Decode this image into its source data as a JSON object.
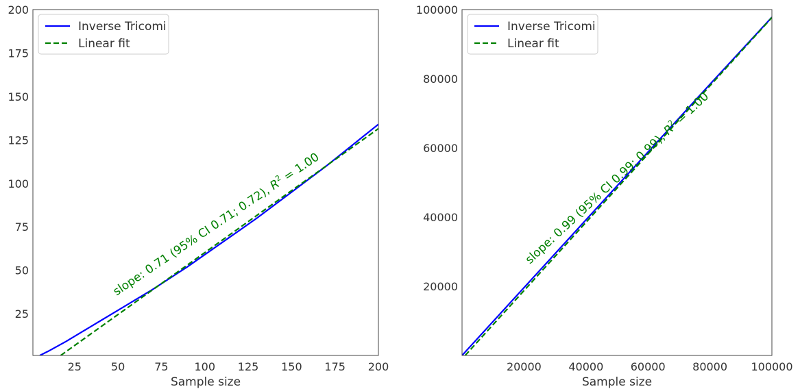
{
  "chart_data": [
    {
      "type": "line",
      "xlabel": "Sample size",
      "ylabel": "",
      "xlim": [
        1,
        200
      ],
      "ylim": [
        1,
        200
      ],
      "xticks": [
        25,
        50,
        75,
        100,
        125,
        150,
        175,
        200
      ],
      "yticks": [
        25,
        50,
        75,
        100,
        125,
        150,
        175,
        200
      ],
      "grid": false,
      "legend_position": "top-left",
      "series": [
        {
          "name": "Inverse Tricomi",
          "style": "solid",
          "color": "#0000ff",
          "x": [
            5,
            10,
            20,
            30,
            40,
            50,
            60,
            70,
            80,
            90,
            100,
            110,
            120,
            130,
            140,
            150,
            160,
            170,
            180,
            190,
            200
          ],
          "y": [
            1,
            3.5,
            9,
            15,
            21,
            27,
            33,
            39,
            45.5,
            52,
            59,
            66,
            73,
            80,
            87.5,
            95,
            102.5,
            110,
            118,
            126,
            134
          ]
        },
        {
          "name": "Linear fit",
          "style": "dashed",
          "color": "#008000",
          "x": [
            17,
            200
          ],
          "y": [
            1,
            131.5
          ]
        }
      ],
      "annotation": {
        "prefix": "slope: 0.71 (95% CI 0.71; 0.72), ",
        "r_symbol": "R",
        "r_exp": "2",
        "suffix": " = 1.00",
        "color": "#008000"
      }
    },
    {
      "type": "line",
      "xlabel": "Sample size",
      "ylabel": "",
      "xlim": [
        1,
        100000
      ],
      "ylim": [
        1,
        100000
      ],
      "xticks": [
        20000,
        40000,
        60000,
        80000,
        100000
      ],
      "yticks": [
        20000,
        40000,
        60000,
        80000,
        100000
      ],
      "grid": false,
      "legend_position": "top-left",
      "series": [
        {
          "name": "Inverse Tricomi",
          "style": "solid",
          "color": "#0000ff",
          "x": [
            1,
            10000,
            20000,
            40000,
            60000,
            80000,
            100000
          ],
          "y": [
            1,
            9800,
            19600,
            39200,
            58800,
            78400,
            97800
          ]
        },
        {
          "name": "Linear fit",
          "style": "dashed",
          "color": "#008000",
          "x": [
            1000,
            100000
          ],
          "y": [
            1,
            97700
          ]
        }
      ],
      "annotation": {
        "prefix": "slope: 0.99 (95% CI 0.99; 0.99), ",
        "r_symbol": "R",
        "r_exp": "2",
        "suffix": " = 1.00",
        "color": "#008000"
      }
    }
  ]
}
